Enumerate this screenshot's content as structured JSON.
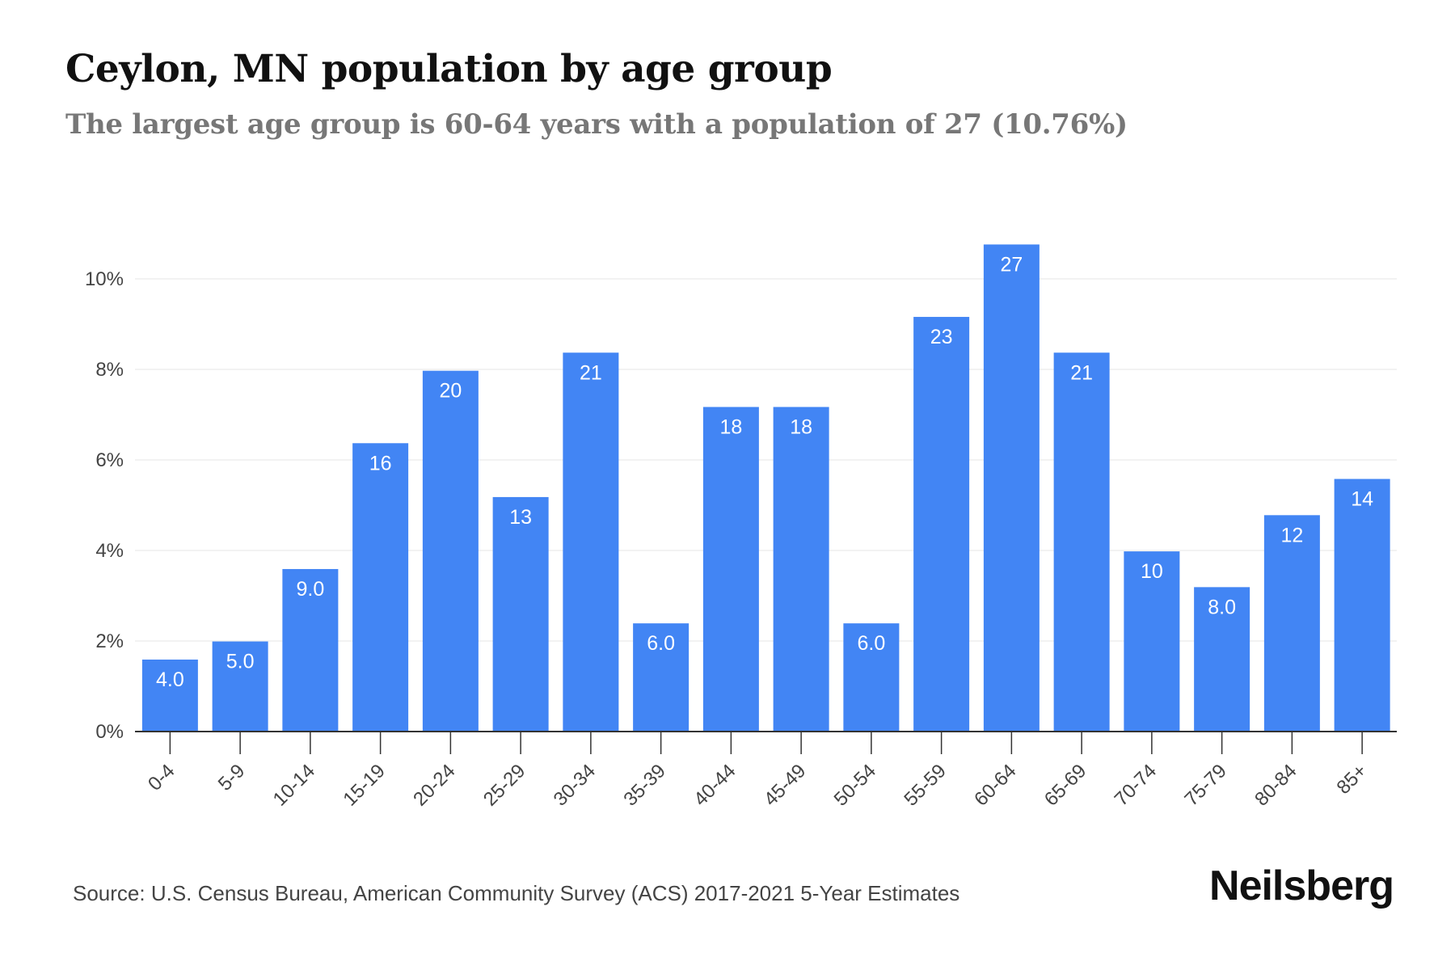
{
  "header": {
    "title": "Ceylon, MN population by age group",
    "subtitle": "The largest age group is 60-64 years with a population of 27 (10.76%)"
  },
  "footer": {
    "source": "Source: U.S. Census Bureau, American Community Survey (ACS) 2017-2021 5-Year Estimates",
    "brand": "Neilsberg"
  },
  "colors": {
    "bar": "#4285F4",
    "bar_label": "#ffffff",
    "grid": "#eeeeee",
    "axis": "#333333",
    "tick_text": "#444444"
  },
  "chart_data": {
    "type": "bar",
    "title": "Ceylon, MN population by age group",
    "xlabel": "",
    "ylabel": "",
    "categories": [
      "0-4",
      "5-9",
      "10-14",
      "15-19",
      "20-24",
      "25-29",
      "30-34",
      "35-39",
      "40-44",
      "45-49",
      "50-54",
      "55-59",
      "60-64",
      "65-69",
      "70-74",
      "75-79",
      "80-84",
      "85+"
    ],
    "values": [
      1.59,
      1.99,
      3.59,
      6.37,
      7.97,
      5.18,
      8.37,
      2.39,
      7.17,
      7.17,
      2.39,
      9.16,
      10.76,
      8.37,
      3.98,
      3.19,
      4.78,
      5.58
    ],
    "labels": [
      "4.0",
      "5.0",
      "9.0",
      "16",
      "20",
      "13",
      "21",
      "6.0",
      "18",
      "18",
      "6.0",
      "23",
      "27",
      "21",
      "10",
      "8.0",
      "12",
      "14"
    ],
    "yticks": [
      0,
      2,
      4,
      6,
      8,
      10
    ],
    "ytick_labels": [
      "0%",
      "2%",
      "4%",
      "6%",
      "8%",
      "10%"
    ],
    "ylim": [
      0,
      11
    ],
    "grid": true,
    "legend": "none"
  }
}
